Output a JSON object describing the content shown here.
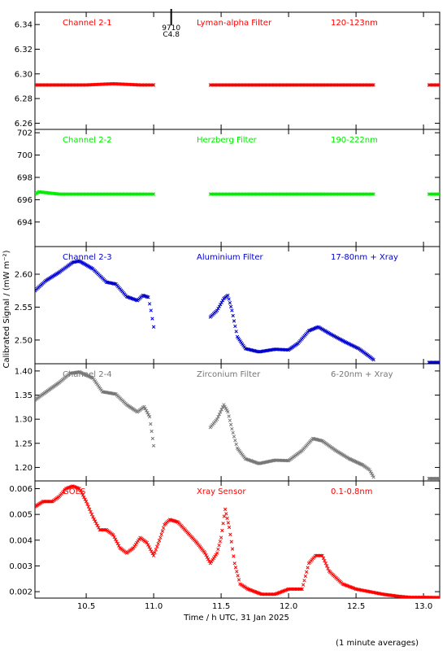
{
  "figure": {
    "xlabel": "Time / h UTC, 31 Jan 2025",
    "ylabel": "Calibrated Signal / (mW m⁻²)",
    "footnote": "(1 minute averages)"
  },
  "chart_data": [
    {
      "type": "scatter",
      "channel_label": "Channel 2-1",
      "filter_label": "Lyman-alpha Filter",
      "band_label": "120-123nm",
      "color": "#ff0000",
      "marker": "x",
      "xlim": [
        10.12,
        13.12
      ],
      "ylim": [
        6.255,
        6.35
      ],
      "yticks": [
        6.26,
        6.28,
        6.3,
        6.32,
        6.34
      ],
      "ytick_labels": [
        "6.26",
        "6.28",
        "6.30",
        "6.32",
        "6.34"
      ],
      "event_marker": {
        "x": 11.13,
        "labels": [
          "9710",
          "C4.8"
        ]
      },
      "series": [
        {
          "x": [
            10.12,
            10.3,
            10.5,
            10.7,
            10.9,
            11.0
          ],
          "y": [
            6.291,
            6.291,
            6.291,
            6.292,
            6.291,
            6.291
          ]
        },
        {
          "x": [
            11.42,
            11.7,
            12.0,
            12.3,
            12.63
          ],
          "y": [
            6.291,
            6.291,
            6.291,
            6.291,
            6.291
          ]
        },
        {
          "x": [
            13.04,
            13.12
          ],
          "y": [
            6.291,
            6.291
          ]
        }
      ]
    },
    {
      "type": "scatter",
      "channel_label": "Channel 2-2",
      "filter_label": "Herzberg Filter",
      "band_label": "190-222nm",
      "color": "#00ee00",
      "marker": "x",
      "xlim": [
        10.12,
        13.12
      ],
      "ylim": [
        691.8,
        702.3
      ],
      "yticks": [
        694,
        696,
        698,
        700,
        702
      ],
      "ytick_labels": [
        "694",
        "696",
        "698",
        "700",
        "702"
      ],
      "series": [
        {
          "x": [
            10.12,
            10.15,
            10.3,
            10.5,
            10.7,
            10.9,
            11.0
          ],
          "y": [
            696.5,
            696.7,
            696.5,
            696.5,
            696.5,
            696.5,
            696.5
          ]
        },
        {
          "x": [
            11.42,
            11.7,
            12.0,
            12.3,
            12.63
          ],
          "y": [
            696.5,
            696.5,
            696.5,
            696.5,
            696.5
          ]
        },
        {
          "x": [
            13.04,
            13.12
          ],
          "y": [
            696.5,
            696.5
          ]
        }
      ]
    },
    {
      "type": "scatter",
      "channel_label": "Channel 2-3",
      "filter_label": "Aluminium Filter",
      "band_label": "17-80nm + Xray",
      "color": "#0000cc",
      "marker": "x",
      "xlim": [
        10.12,
        13.12
      ],
      "ylim": [
        2.464,
        2.642
      ],
      "yticks": [
        2.5,
        2.55,
        2.6
      ],
      "ytick_labels": [
        "2.50",
        "2.55",
        "2.60"
      ],
      "series": [
        {
          "x": [
            10.12,
            10.2,
            10.3,
            10.4,
            10.45,
            10.55,
            10.65,
            10.72,
            10.8,
            10.88,
            10.92,
            10.96,
            10.98,
            11.0
          ],
          "y": [
            2.575,
            2.59,
            2.603,
            2.618,
            2.62,
            2.608,
            2.588,
            2.585,
            2.566,
            2.56,
            2.568,
            2.565,
            2.545,
            2.52
          ]
        },
        {
          "x": [
            11.42,
            11.47,
            11.52,
            11.55,
            11.58,
            11.62,
            11.68,
            11.78,
            11.9,
            12.0,
            12.07,
            12.15,
            12.22,
            12.32,
            12.42,
            12.52,
            12.6,
            12.63
          ],
          "y": [
            2.535,
            2.545,
            2.563,
            2.568,
            2.545,
            2.505,
            2.487,
            2.482,
            2.486,
            2.485,
            2.495,
            2.514,
            2.52,
            2.508,
            2.497,
            2.487,
            2.475,
            2.47
          ]
        },
        {
          "x": [
            13.04,
            13.12
          ],
          "y": [
            2.466,
            2.466
          ]
        }
      ]
    },
    {
      "type": "scatter",
      "channel_label": "Channel 2-4",
      "filter_label": "Zirconium Filter",
      "band_label": "6-20nm + Xray",
      "color": "#777777",
      "marker": "x",
      "xlim": [
        10.12,
        13.12
      ],
      "ylim": [
        1.172,
        1.415
      ],
      "yticks": [
        1.2,
        1.25,
        1.3,
        1.35,
        1.4
      ],
      "ytick_labels": [
        "1.20",
        "1.25",
        "1.30",
        "1.35",
        "1.40"
      ],
      "series": [
        {
          "x": [
            10.12,
            10.2,
            10.3,
            10.38,
            10.45,
            10.55,
            10.62,
            10.72,
            10.8,
            10.88,
            10.93,
            10.97,
            11.0
          ],
          "y": [
            1.34,
            1.356,
            1.376,
            1.395,
            1.398,
            1.385,
            1.357,
            1.352,
            1.33,
            1.315,
            1.326,
            1.305,
            1.245
          ]
        },
        {
          "x": [
            11.42,
            11.47,
            11.52,
            11.55,
            11.58,
            11.62,
            11.68,
            11.78,
            11.9,
            12.0,
            12.1,
            12.18,
            12.25,
            12.35,
            12.45,
            12.55,
            12.6,
            12.63
          ],
          "y": [
            1.283,
            1.3,
            1.33,
            1.315,
            1.28,
            1.24,
            1.218,
            1.208,
            1.215,
            1.214,
            1.235,
            1.26,
            1.255,
            1.235,
            1.218,
            1.205,
            1.195,
            1.18
          ]
        },
        {
          "x": [
            13.04,
            13.12
          ],
          "y": [
            1.177,
            1.177
          ]
        }
      ]
    },
    {
      "type": "scatter",
      "channel_label": "GOES",
      "filter_label": "Xray Sensor",
      "band_label": "0.1-0.8nm",
      "color": "#ff0000",
      "marker": "x",
      "xlim": [
        10.12,
        13.12
      ],
      "ylim": [
        0.00175,
        0.0063
      ],
      "yticks": [
        0.002,
        0.003,
        0.004,
        0.005,
        0.006
      ],
      "ytick_labels": [
        "0.002",
        "0.003",
        "0.004",
        "0.005",
        "0.006"
      ],
      "series": [
        {
          "x": [
            10.12,
            10.18,
            10.25,
            10.3,
            10.35,
            10.4,
            10.45,
            10.5,
            10.55,
            10.6,
            10.65,
            10.7,
            10.75,
            10.8,
            10.85,
            10.9,
            10.95,
            11.0,
            11.05,
            11.08,
            11.12,
            11.18,
            11.25,
            11.32,
            11.38,
            11.42,
            11.47,
            11.5,
            11.53,
            11.56,
            11.6,
            11.64,
            11.7,
            11.8,
            11.9,
            12.0,
            12.05,
            12.1,
            12.15,
            12.2,
            12.25,
            12.3,
            12.4,
            12.5,
            12.6,
            12.7,
            12.8,
            12.9,
            13.0,
            13.12
          ],
          "y": [
            0.0053,
            0.0055,
            0.0055,
            0.0057,
            0.006,
            0.0061,
            0.006,
            0.0055,
            0.0049,
            0.0044,
            0.0044,
            0.0042,
            0.0037,
            0.0035,
            0.0037,
            0.0041,
            0.0039,
            0.0034,
            0.0041,
            0.0046,
            0.0048,
            0.0047,
            0.0043,
            0.0039,
            0.0035,
            0.0031,
            0.0035,
            0.0041,
            0.0052,
            0.0045,
            0.0031,
            0.0023,
            0.0021,
            0.0019,
            0.0019,
            0.0021,
            0.0021,
            0.0021,
            0.0031,
            0.0034,
            0.0034,
            0.0028,
            0.0023,
            0.0021,
            0.002,
            0.0019,
            0.00183,
            0.00178,
            0.00178,
            0.00177
          ]
        }
      ]
    }
  ]
}
